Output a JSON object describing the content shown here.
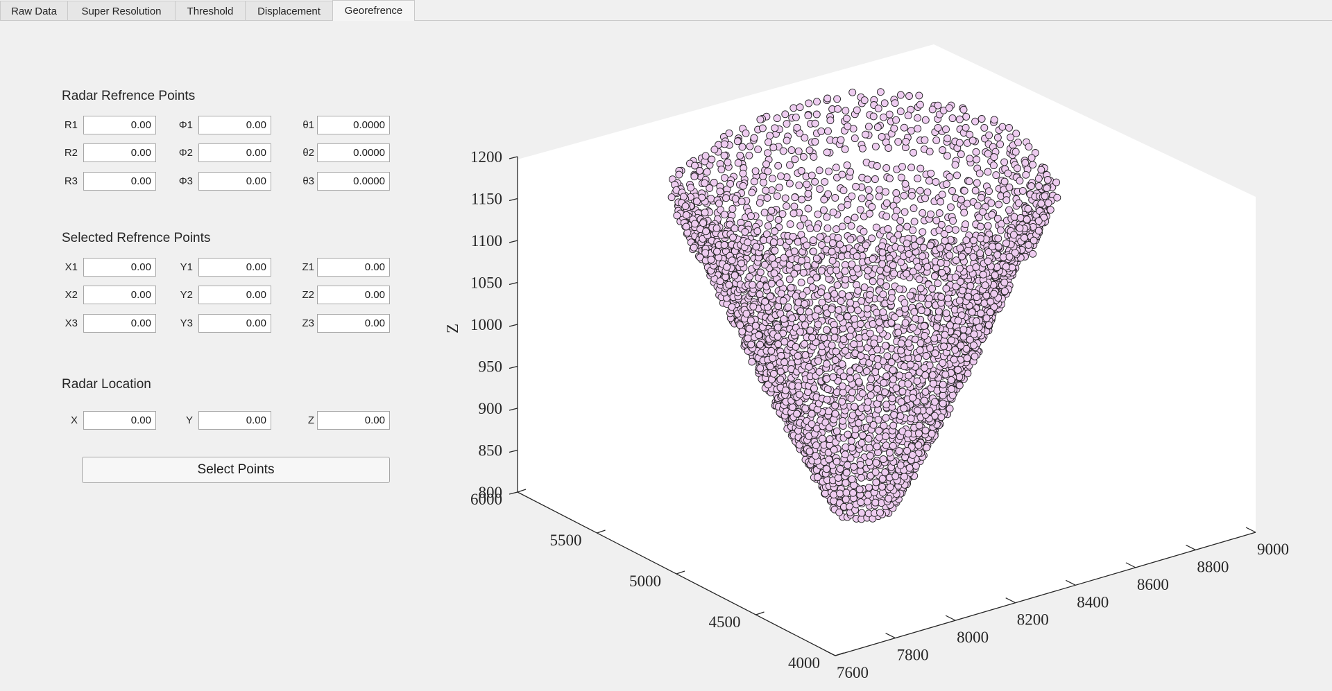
{
  "tabs": [
    {
      "label": "Raw Data",
      "active": false
    },
    {
      "label": "Super Resolution",
      "active": false
    },
    {
      "label": "Threshold",
      "active": false
    },
    {
      "label": "Displacement",
      "active": false
    },
    {
      "label": "Georefrence",
      "active": true
    }
  ],
  "radar_ref": {
    "title": "Radar Refrence Points",
    "rows": [
      {
        "r_label": "R1",
        "r": "0.00",
        "phi_label": "Φ1",
        "phi": "0.00",
        "theta_label": "θ1",
        "theta": "0.0000"
      },
      {
        "r_label": "R2",
        "r": "0.00",
        "phi_label": "Φ2",
        "phi": "0.00",
        "theta_label": "θ2",
        "theta": "0.0000"
      },
      {
        "r_label": "R3",
        "r": "0.00",
        "phi_label": "Φ3",
        "phi": "0.00",
        "theta_label": "θ3",
        "theta": "0.0000"
      }
    ]
  },
  "selected_ref": {
    "title": "Selected Refrence Points",
    "rows": [
      {
        "x_label": "X1",
        "x": "0.00",
        "y_label": "Y1",
        "y": "0.00",
        "z_label": "Z1",
        "z": "0.00"
      },
      {
        "x_label": "X2",
        "x": "0.00",
        "y_label": "Y2",
        "y": "0.00",
        "z_label": "Z2",
        "z": "0.00"
      },
      {
        "x_label": "X3",
        "x": "0.00",
        "y_label": "Y3",
        "y": "0.00",
        "z_label": "Z3",
        "z": "0.00"
      }
    ]
  },
  "radar_location": {
    "title": "Radar Location",
    "x_label": "X",
    "x": "0.00",
    "y_label": "Y",
    "y": "0.00",
    "z_label": "Z",
    "z": "0.00"
  },
  "select_points_label": "Select Points",
  "chart_data": {
    "type": "scatter",
    "title": "",
    "zlabel": "Z",
    "xlabel": "",
    "ylabel": "",
    "xlim": [
      7600,
      9000
    ],
    "ylim": [
      4000,
      6000
    ],
    "zlim": [
      800,
      1200
    ],
    "xticks": [
      7600,
      7800,
      8000,
      8200,
      8400,
      8600,
      8800,
      9000
    ],
    "yticks": [
      4000,
      4500,
      5000,
      5500,
      6000
    ],
    "zticks": [
      800,
      850,
      900,
      950,
      1000,
      1050,
      1100,
      1150,
      1200
    ],
    "marker_face": "#eeccf0",
    "marker_edge": "#222222",
    "points_description": "dense ring point cloud forming an inverted cone (bowl) with radius growing with Z",
    "cone": {
      "center_x": 8250,
      "center_y": 5050,
      "z_bottom": 805,
      "z_top": 1195,
      "radius_bottom": 80,
      "radius_top": 560,
      "rings": 40
    }
  }
}
